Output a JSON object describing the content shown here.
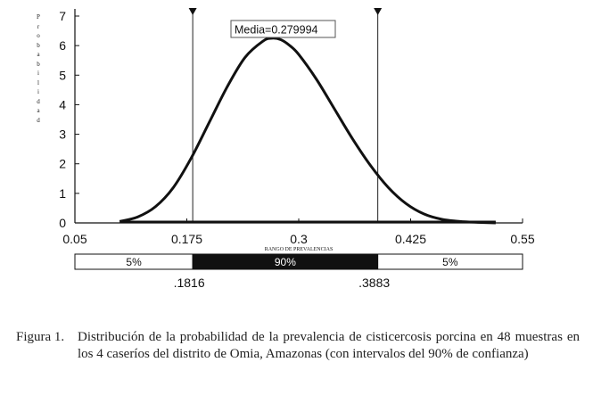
{
  "chart_data": {
    "type": "line",
    "title": "",
    "xlabel": "RANGO DE PREVALENCIAS",
    "ylabel": "Probabilidad",
    "x_ticks": [
      0.05,
      0.175,
      0.3,
      0.425,
      0.55
    ],
    "x_tick_labels": [
      "0.05",
      "0.175",
      "0.3",
      "0.425",
      "0.55"
    ],
    "y_ticks": [
      0,
      1,
      2,
      3,
      4,
      5,
      6,
      7
    ],
    "y_tick_labels": [
      "0",
      "1",
      "2",
      "3",
      "4",
      "5",
      "6",
      "7"
    ],
    "xlim": [
      0.05,
      0.55
    ],
    "ylim": [
      0,
      7
    ],
    "grid": false,
    "annotation": "Media=0.279994",
    "curve": {
      "x": [
        0.1,
        0.12,
        0.14,
        0.16,
        0.18,
        0.2,
        0.22,
        0.24,
        0.26,
        0.27,
        0.28,
        0.29,
        0.3,
        0.32,
        0.34,
        0.36,
        0.38,
        0.4,
        0.42,
        0.44,
        0.46,
        0.48,
        0.5,
        0.52
      ],
      "y": [
        0.05,
        0.2,
        0.55,
        1.2,
        2.2,
        3.4,
        4.6,
        5.6,
        6.15,
        6.25,
        6.2,
        6.0,
        5.7,
        4.85,
        3.85,
        2.85,
        1.95,
        1.2,
        0.65,
        0.3,
        0.12,
        0.05,
        0.02,
        0.0
      ]
    },
    "markers": [
      0.1816,
      0.3883
    ],
    "confidence_bar": {
      "segments": [
        {
          "label": "5%",
          "from": 0.05,
          "to": 0.1816,
          "fill": "#ffffff",
          "text_color": "#111111"
        },
        {
          "label": "90%",
          "from": 0.1816,
          "to": 0.3883,
          "fill": "#111111",
          "text_color": "#ffffff"
        },
        {
          "label": "5%",
          "from": 0.3883,
          "to": 0.55,
          "fill": "#ffffff",
          "text_color": "#111111"
        }
      ],
      "bound_labels": [
        ".1816",
        ".3883"
      ]
    }
  },
  "ylabel_letters": [
    "P",
    "r",
    "o",
    "b",
    "a",
    "b",
    "i",
    "l",
    "i",
    "d",
    "a",
    "d"
  ],
  "caption": {
    "number": "Figura 1.",
    "text": "Distribución de la probabilidad de la prevalencia de cisticercosis porcina en 48 muestras en los 4 caseríos del distrito de Omia, Amazonas (con intervalos del 90% de confianza)"
  }
}
